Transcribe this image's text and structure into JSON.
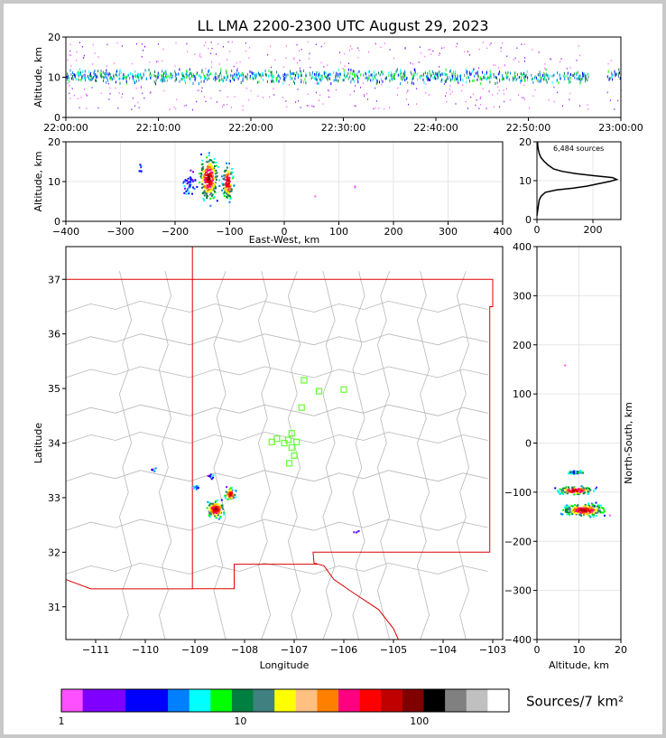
{
  "title": "LL LMA 2200-2300 UTC August 29, 2023",
  "chart_data": [
    {
      "type": "scatter",
      "name": "altitude-time",
      "ylabel": "Altitude, km",
      "xlim": [
        "22:00:00",
        "23:00:00"
      ],
      "ylim": [
        0,
        20
      ],
      "xticks": [
        "22:00:00",
        "22:10:00",
        "22:20:00",
        "22:30:00",
        "22:40:00",
        "22:50:00",
        "23:00:00"
      ],
      "yticks": [
        0,
        10,
        20
      ],
      "band_altitude_km": 10.5
    },
    {
      "type": "scatter",
      "name": "altitude-eastwest",
      "xlabel": "East-West, km",
      "ylabel": "Altitude, km",
      "xlim": [
        -400,
        400
      ],
      "ylim": [
        0,
        20
      ],
      "xticks": [
        -400,
        -300,
        -200,
        -100,
        0,
        100,
        200,
        300,
        400
      ],
      "yticks": [
        0,
        10,
        20
      ],
      "clusters": [
        {
          "x": -140,
          "z": 11,
          "w": 25,
          "h": 8,
          "n": 220
        },
        {
          "x": -105,
          "z": 10,
          "w": 14,
          "h": 6,
          "n": 120
        },
        {
          "x": -175,
          "z": 9.5,
          "w": 16,
          "h": 4,
          "n": 40
        },
        {
          "x": -265,
          "z": 13,
          "w": 5,
          "h": 3,
          "n": 6
        }
      ]
    },
    {
      "type": "line",
      "name": "altitude-histogram",
      "annotation": "6,484 sources",
      "xlim": [
        0,
        300
      ],
      "ylim": [
        0,
        20
      ],
      "xticks": [
        0,
        200
      ],
      "yticks": [
        0,
        10,
        20
      ],
      "profile": [
        [
          0,
          1
        ],
        [
          2,
          2
        ],
        [
          4,
          3
        ],
        [
          8,
          5
        ],
        [
          15,
          6
        ],
        [
          30,
          7
        ],
        [
          70,
          7.6
        ],
        [
          130,
          8.1
        ],
        [
          180,
          8.6
        ],
        [
          220,
          9.2
        ],
        [
          260,
          9.8
        ],
        [
          285,
          10.3
        ],
        [
          270,
          10.8
        ],
        [
          200,
          11.3
        ],
        [
          140,
          11.8
        ],
        [
          90,
          12.4
        ],
        [
          60,
          13
        ],
        [
          40,
          14
        ],
        [
          25,
          15
        ],
        [
          14,
          16
        ],
        [
          8,
          17
        ],
        [
          5,
          18
        ],
        [
          3,
          19
        ],
        [
          2,
          20
        ]
      ]
    },
    {
      "type": "scatter",
      "name": "plan-view-map",
      "xlabel": "Longitude",
      "ylabel": "Latitude",
      "xlim": [
        -111.6,
        -102.8
      ],
      "ylim": [
        30.4,
        37.6
      ],
      "xticks": [
        -111,
        -110,
        -109,
        -108,
        -107,
        -106,
        -105,
        -104,
        -103
      ],
      "yticks": [
        31,
        32,
        33,
        34,
        35,
        36,
        37
      ],
      "stations": [
        [
          -106.8,
          35.15
        ],
        [
          -106.5,
          34.95
        ],
        [
          -106.0,
          34.98
        ],
        [
          -106.85,
          34.65
        ],
        [
          -107.05,
          34.18
        ],
        [
          -107.12,
          34.06
        ],
        [
          -106.95,
          34.02
        ],
        [
          -107.2,
          34.0
        ],
        [
          -107.35,
          34.08
        ],
        [
          -107.45,
          34.02
        ],
        [
          -107.05,
          33.92
        ],
        [
          -107.0,
          33.77
        ],
        [
          -107.1,
          33.63
        ]
      ],
      "storm_clusters": [
        {
          "lon": -108.6,
          "lat": 32.8,
          "w": 0.25,
          "h": 0.22,
          "n": 140
        },
        {
          "lon": -108.3,
          "lat": 33.08,
          "w": 0.15,
          "h": 0.15,
          "n": 70
        },
        {
          "lon": -108.7,
          "lat": 33.4,
          "w": 0.08,
          "h": 0.05,
          "n": 12
        },
        {
          "lon": -109.0,
          "lat": 33.2,
          "w": 0.12,
          "h": 0.05,
          "n": 15
        },
        {
          "lon": -109.85,
          "lat": 33.53,
          "w": 0.06,
          "h": 0.04,
          "n": 8
        },
        {
          "lon": -105.75,
          "lat": 32.4,
          "w": 0.1,
          "h": 0.04,
          "n": 4
        }
      ]
    },
    {
      "type": "scatter",
      "name": "northsouth-altitude",
      "xlabel": "Altitude, km",
      "ylabel": "North-South, km",
      "xlim": [
        0,
        20
      ],
      "ylim": [
        -400,
        400
      ],
      "xticks": [
        0,
        10,
        20
      ],
      "yticks": [
        -400,
        -300,
        -200,
        -100,
        0,
        100,
        200,
        300,
        400
      ],
      "clusters": [
        {
          "z": 11,
          "y": -135,
          "w": 7,
          "h": 18,
          "n": 230
        },
        {
          "z": 9,
          "y": -95,
          "w": 6,
          "h": 12,
          "n": 120
        },
        {
          "z": 9,
          "y": -58,
          "w": 3,
          "h": 6,
          "n": 40
        }
      ]
    },
    {
      "type": "heatmap",
      "name": "colorbar",
      "label": "Sources/7 km²",
      "ticks": [
        "1",
        "10",
        "100"
      ],
      "colors": [
        "#ff50ff",
        "#8000ff",
        "#8000ff",
        "#0000ff",
        "#0000ff",
        "#0080ff",
        "#00ffff",
        "#00ff00",
        "#008040",
        "#408080",
        "#ffff00",
        "#ffc080",
        "#ff8000",
        "#ff0080",
        "#ff0000",
        "#c00000",
        "#800000",
        "#000000",
        "#808080",
        "#c0c0c0",
        "#ffffff"
      ]
    }
  ]
}
